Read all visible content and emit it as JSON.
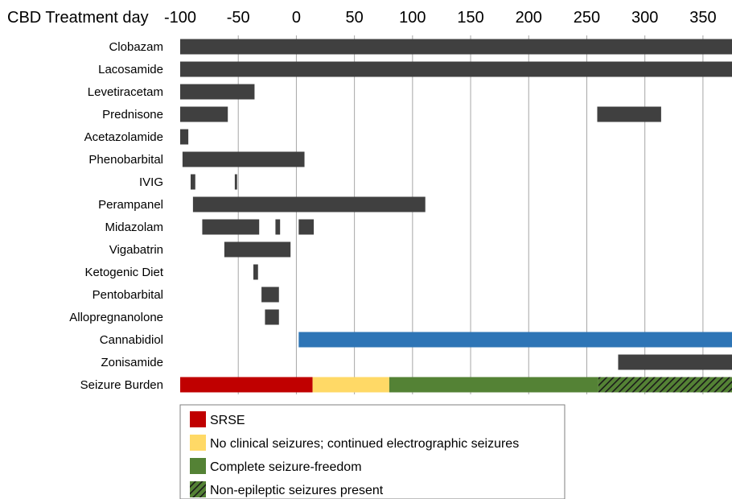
{
  "chart_data": {
    "type": "bar",
    "subtype": "gantt",
    "xlabel": "CBD Treatment day",
    "x_ticks": [
      -100,
      -50,
      0,
      50,
      100,
      150,
      200,
      250,
      300,
      350
    ],
    "x_tick_labels": [
      "-100",
      "-50",
      "0",
      "50",
      "100",
      "150",
      "200",
      "250",
      "300",
      "350"
    ],
    "xlim": [
      -100,
      375
    ],
    "grid": "vertical",
    "categories": [
      "Clobazam",
      "Lacosamide",
      "Levetiracetam",
      "Prednisone",
      "Acetazolamide",
      "Phenobarbital",
      "IVIG",
      "Perampanel",
      "Midazolam",
      "Vigabatrin",
      "Ketogenic Diet",
      "Pentobarbital",
      "Allopregnanolone",
      "Cannabidiol",
      "Zonisamide",
      "Seizure Burden"
    ],
    "treatments": [
      {
        "name": "Clobazam",
        "intervals": [
          [
            -100,
            375
          ]
        ]
      },
      {
        "name": "Lacosamide",
        "intervals": [
          [
            -100,
            375
          ]
        ]
      },
      {
        "name": "Levetiracetam",
        "intervals": [
          [
            -100,
            -36
          ]
        ]
      },
      {
        "name": "Prednisone",
        "intervals": [
          [
            -100,
            -59
          ],
          [
            259,
            314
          ]
        ]
      },
      {
        "name": "Acetazolamide",
        "intervals": [
          [
            -100,
            -93
          ]
        ]
      },
      {
        "name": "Phenobarbital",
        "intervals": [
          [
            -98,
            7
          ]
        ]
      },
      {
        "name": "IVIG",
        "intervals": [
          [
            -91,
            -87
          ],
          [
            -53,
            -51
          ]
        ]
      },
      {
        "name": "Perampanel",
        "intervals": [
          [
            -89,
            111
          ]
        ]
      },
      {
        "name": "Midazolam",
        "intervals": [
          [
            -81,
            -32
          ],
          [
            -18,
            -14
          ],
          [
            2,
            15
          ]
        ]
      },
      {
        "name": "Vigabatrin",
        "intervals": [
          [
            -62,
            -5
          ]
        ]
      },
      {
        "name": "Ketogenic Diet",
        "intervals": [
          [
            -37,
            -33
          ]
        ]
      },
      {
        "name": "Pentobarbital",
        "intervals": [
          [
            -30,
            -15
          ]
        ]
      },
      {
        "name": "Allopregnanolone",
        "intervals": [
          [
            -27,
            -15
          ]
        ]
      },
      {
        "name": "Cannabidiol",
        "intervals": [
          [
            2,
            375
          ]
        ],
        "color": "#2e75b6"
      },
      {
        "name": "Zonisamide",
        "intervals": [
          [
            277,
            375
          ]
        ]
      }
    ],
    "seizure_burden": [
      {
        "state": "srse",
        "start": -100,
        "end": 14
      },
      {
        "state": "electrographic",
        "start": 14,
        "end": 80
      },
      {
        "state": "freedom",
        "start": 80,
        "end": 260
      },
      {
        "state": "non_epileptic",
        "start": 260,
        "end": 375
      }
    ],
    "legend": [
      {
        "key": "srse",
        "label": "SRSE",
        "color": "#c00000",
        "pattern": "solid"
      },
      {
        "key": "electrographic",
        "label": "No clinical seizures; continued electrographic seizures",
        "color": "#ffd966",
        "pattern": "solid"
      },
      {
        "key": "freedom",
        "label": "Complete seizure-freedom",
        "color": "#548235",
        "pattern": "solid"
      },
      {
        "key": "non_epileptic",
        "label": "Non-epileptic seizures present",
        "color": "#548235",
        "pattern": "hatched"
      }
    ],
    "legend_position": "bottom-left",
    "bar_color": "#404040"
  }
}
